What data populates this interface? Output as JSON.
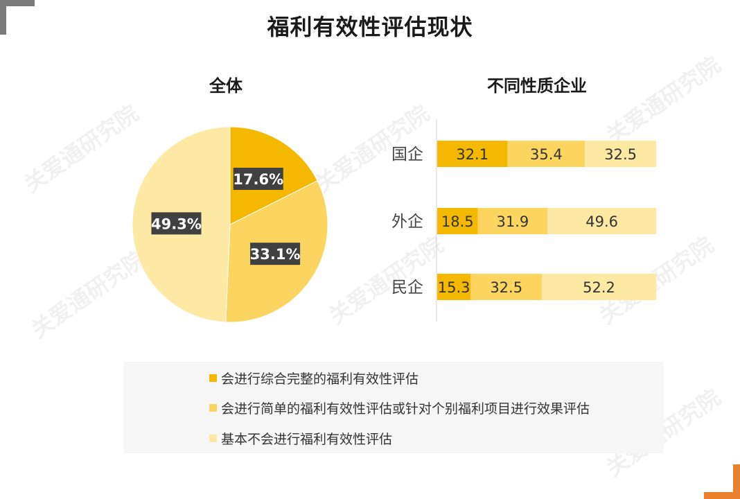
{
  "page": {
    "title": "福利有效性评估现状",
    "watermark": "关爱通研究院"
  },
  "colors": {
    "series1": "#f5b800",
    "series2": "#fbd560",
    "series3": "#fde9a4",
    "label_box": "#404040",
    "label_text": "#ffffff",
    "corner_tl": "#7b7b7b",
    "corner_br": "#e9802c"
  },
  "chart_data": [
    {
      "type": "pie",
      "title": "全体",
      "labels": [
        "会进行综合完整的福利有效性评估",
        "会进行简单的福利有效性评估或针对个别福利项目进行效果评估",
        "基本不会进行福利有效性评估"
      ],
      "values": [
        17.6,
        33.1,
        49.3
      ],
      "value_labels": [
        "17.6%",
        "33.1%",
        "49.3%"
      ],
      "start": "12 o'clock",
      "direction": "clockwise"
    },
    {
      "type": "bar",
      "orientation": "horizontal",
      "stacked": true,
      "title": "不同性质企业",
      "categories": [
        "国企",
        "外企",
        "民企"
      ],
      "series": [
        {
          "name": "会进行综合完整的福利有效性评估",
          "values": [
            32.1,
            18.5,
            15.3
          ]
        },
        {
          "name": "会进行简单的福利有效性评估或针对个别福利项目进行效果评估",
          "values": [
            35.4,
            31.9,
            32.5
          ]
        },
        {
          "name": "基本不会进行福利有效性评估",
          "values": [
            32.5,
            49.6,
            52.2
          ]
        }
      ],
      "xlim": [
        0,
        100
      ],
      "grid": false
    }
  ],
  "legend": {
    "items": [
      {
        "label": "会进行综合完整的福利有效性评估"
      },
      {
        "label": "会进行简单的福利有效性评估或针对个别福利项目进行效果评估"
      },
      {
        "label": "基本不会进行福利有效性评估"
      }
    ]
  }
}
